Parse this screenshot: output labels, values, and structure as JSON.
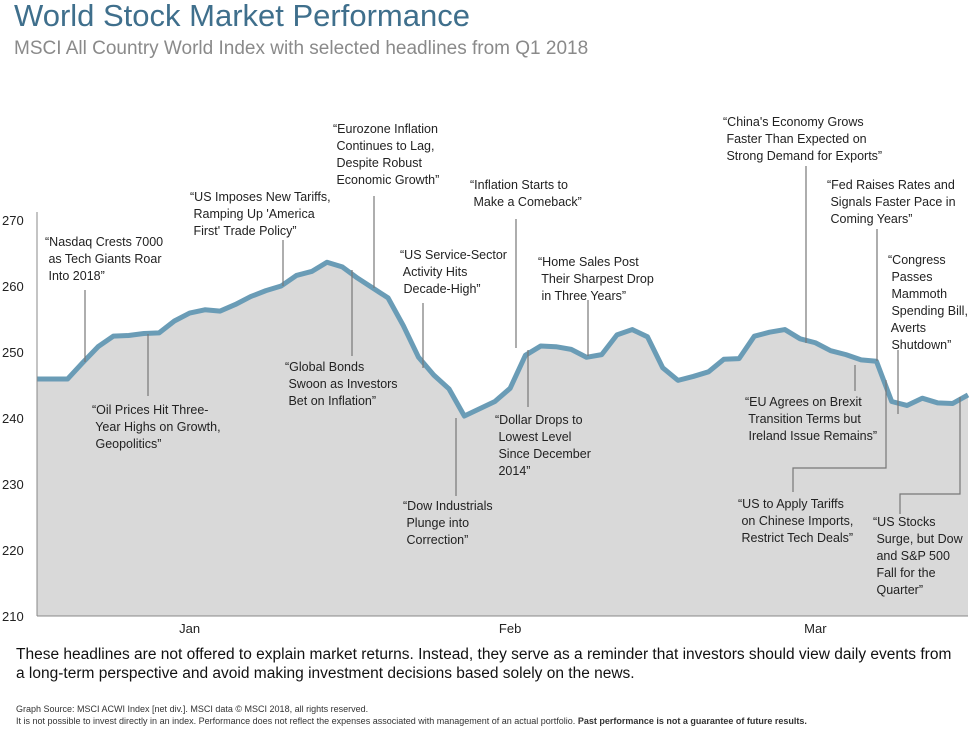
{
  "title": "World Stock Market Performance",
  "subtitle": "MSCI All Country World Index with selected headlines from Q1 2018",
  "chart_data": {
    "type": "area",
    "ylim": [
      210,
      270
    ],
    "yticks": [
      210,
      220,
      230,
      240,
      250,
      260,
      270
    ],
    "month_labels": [
      {
        "label": "Jan",
        "date": "2018-01-16"
      },
      {
        "label": "Feb",
        "date": "2018-02-14"
      },
      {
        "label": "Mar",
        "date": "2018-03-15"
      }
    ],
    "grid": false,
    "line_color": "#6a9cb6",
    "fill_color": "#d9d9d9",
    "points": [
      [
        "2017-12-29",
        245.9
      ],
      [
        "2018-01-02",
        245.9
      ],
      [
        "2018-01-03",
        245.9
      ],
      [
        "2018-01-04",
        248.4
      ],
      [
        "2018-01-05",
        250.8
      ],
      [
        "2018-01-08",
        252.4
      ],
      [
        "2018-01-09",
        252.5
      ],
      [
        "2018-01-10",
        252.8
      ],
      [
        "2018-01-11",
        252.9
      ],
      [
        "2018-01-12",
        254.7
      ],
      [
        "2018-01-16",
        255.9
      ],
      [
        "2018-01-17",
        256.4
      ],
      [
        "2018-01-18",
        256.2
      ],
      [
        "2018-01-19",
        257.2
      ],
      [
        "2018-01-22",
        258.4
      ],
      [
        "2018-01-23",
        259.3
      ],
      [
        "2018-01-24",
        260.0
      ],
      [
        "2018-01-25",
        261.6
      ],
      [
        "2018-01-26",
        262.2
      ],
      [
        "2018-01-29",
        263.6
      ],
      [
        "2018-01-30",
        262.9
      ],
      [
        "2018-01-31",
        261.2
      ],
      [
        "2018-02-01",
        259.7
      ],
      [
        "2018-02-02",
        258.2
      ],
      [
        "2018-02-05",
        254.0
      ],
      [
        "2018-02-06",
        249.2
      ],
      [
        "2018-02-07",
        246.5
      ],
      [
        "2018-02-08",
        244.4
      ],
      [
        "2018-02-09",
        240.3
      ],
      [
        "2018-02-12",
        241.4
      ],
      [
        "2018-02-13",
        242.5
      ],
      [
        "2018-02-14",
        244.5
      ],
      [
        "2018-02-15",
        249.5
      ],
      [
        "2018-02-16",
        250.9
      ],
      [
        "2018-02-20",
        250.8
      ],
      [
        "2018-02-21",
        250.4
      ],
      [
        "2018-02-22",
        249.2
      ],
      [
        "2018-02-23",
        249.6
      ],
      [
        "2018-02-26",
        252.6
      ],
      [
        "2018-02-27",
        253.4
      ],
      [
        "2018-02-28",
        252.3
      ],
      [
        "2018-03-01",
        247.6
      ],
      [
        "2018-03-02",
        245.7
      ],
      [
        "2018-03-05",
        246.3
      ],
      [
        "2018-03-06",
        247.0
      ],
      [
        "2018-03-07",
        248.9
      ],
      [
        "2018-03-08",
        249.0
      ],
      [
        "2018-03-09",
        252.4
      ],
      [
        "2018-03-12",
        253.0
      ],
      [
        "2018-03-13",
        253.4
      ],
      [
        "2018-03-14",
        252.0
      ],
      [
        "2018-03-15",
        251.4
      ],
      [
        "2018-03-16",
        250.2
      ],
      [
        "2018-03-19",
        249.6
      ],
      [
        "2018-03-20",
        248.8
      ],
      [
        "2018-03-21",
        248.6
      ],
      [
        "2018-03-22",
        242.5
      ],
      [
        "2018-03-23",
        241.9
      ],
      [
        "2018-03-26",
        243.0
      ],
      [
        "2018-03-27",
        242.3
      ],
      [
        "2018-03-28",
        242.2
      ],
      [
        "2018-03-29",
        243.5
      ]
    ],
    "annotations": [
      {
        "text": "“Nasdaq Crests 7000\n as Tech Giants Roar\n Into 2018”"
      },
      {
        "text": "“Oil Prices Hit Three-\n Year Highs on Growth,\n Geopolitics”"
      },
      {
        "text": "“US Imposes New Tariffs,\n Ramping Up 'America\n First' Trade Policy”"
      },
      {
        "text": "“Eurozone Inflation\n Continues to Lag,\n Despite Robust\n Economic Growth”"
      },
      {
        "text": "“Global Bonds\n Swoon as Investors\n Bet on Inflation”"
      },
      {
        "text": "“US Service-Sector\n Activity Hits\n Decade-High”"
      },
      {
        "text": "“Dow Industrials\n Plunge into\n Correction”"
      },
      {
        "text": "“Inflation Starts to\n Make a Comeback”"
      },
      {
        "text": "“Dollar Drops to\n Lowest Level\n Since December\n 2014”"
      },
      {
        "text": "“Home Sales Post\n Their Sharpest Drop\n in Three Years”"
      },
      {
        "text": "“China's Economy Grows\n Faster Than Expected on\n Strong Demand for Exports”"
      },
      {
        "text": "“Fed Raises Rates and\n Signals Faster Pace in\n Coming Years”"
      },
      {
        "text": "“Congress\n Passes\n Mammoth\n Spending Bill,\n Averts\n Shutdown”"
      },
      {
        "text": "“EU Agrees on Brexit\n Transition Terms but\n Ireland Issue Remains”"
      },
      {
        "text": "“US to Apply Tariffs\n on Chinese Imports,\n Restrict Tech Deals”"
      },
      {
        "text": "“US Stocks\n Surge, but Dow\n and S&P 500\n Fall for the\n Quarter”"
      }
    ]
  },
  "note": "These headlines are not offered to explain market returns. Instead, they serve as a reminder that investors should view daily events from a long-term perspective and avoid making investment decisions based solely on the news.",
  "footer": {
    "source": "Graph Source: MSCI ACWI Index [net div.]. MSCI data © MSCI 2018, all rights reserved.",
    "disclaimer": "It is not possible to invest directly in an index. Performance does not reflect the expenses associated with management of an actual portfolio.",
    "disclaimer_bold": "Past performance is not a guarantee of future results."
  }
}
